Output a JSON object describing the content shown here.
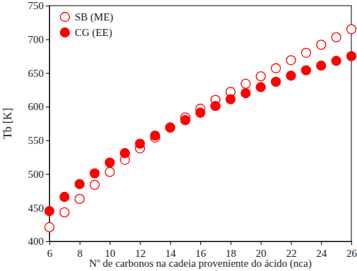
{
  "chart_data": {
    "type": "scatter",
    "x_label": "Nº de carbonos na cadeia proveniente do ácido (nca)",
    "y_label": "Tb [K]",
    "xlim": [
      6,
      26
    ],
    "xticks": [
      6,
      8,
      10,
      12,
      14,
      16,
      18,
      20,
      22,
      24,
      26
    ],
    "ylim": [
      400,
      750
    ],
    "yticks": [
      400,
      450,
      500,
      550,
      600,
      650,
      700,
      750
    ],
    "grid": false,
    "legend": "upper-left",
    "x": [
      6,
      7,
      8,
      9,
      10,
      11,
      12,
      13,
      14,
      15,
      16,
      17,
      18,
      19,
      20,
      21,
      22,
      23,
      24,
      25,
      26
    ],
    "series": [
      {
        "name": "SB (ME)",
        "color": "#ff0000",
        "marker": "open-circle",
        "values": [
          421,
          443,
          463,
          484,
          503,
          521,
          538,
          554,
          569,
          584,
          597,
          610,
          622,
          634,
          645,
          657,
          669,
          680,
          692,
          703,
          715
        ]
      },
      {
        "name": "CG (EE)",
        "color": "#ff0000",
        "marker": "circle",
        "values": [
          445,
          466,
          485,
          501,
          517,
          531,
          545,
          557,
          569,
          580,
          591,
          601,
          611,
          620,
          629,
          637,
          646,
          654,
          661,
          668,
          675
        ]
      }
    ]
  }
}
